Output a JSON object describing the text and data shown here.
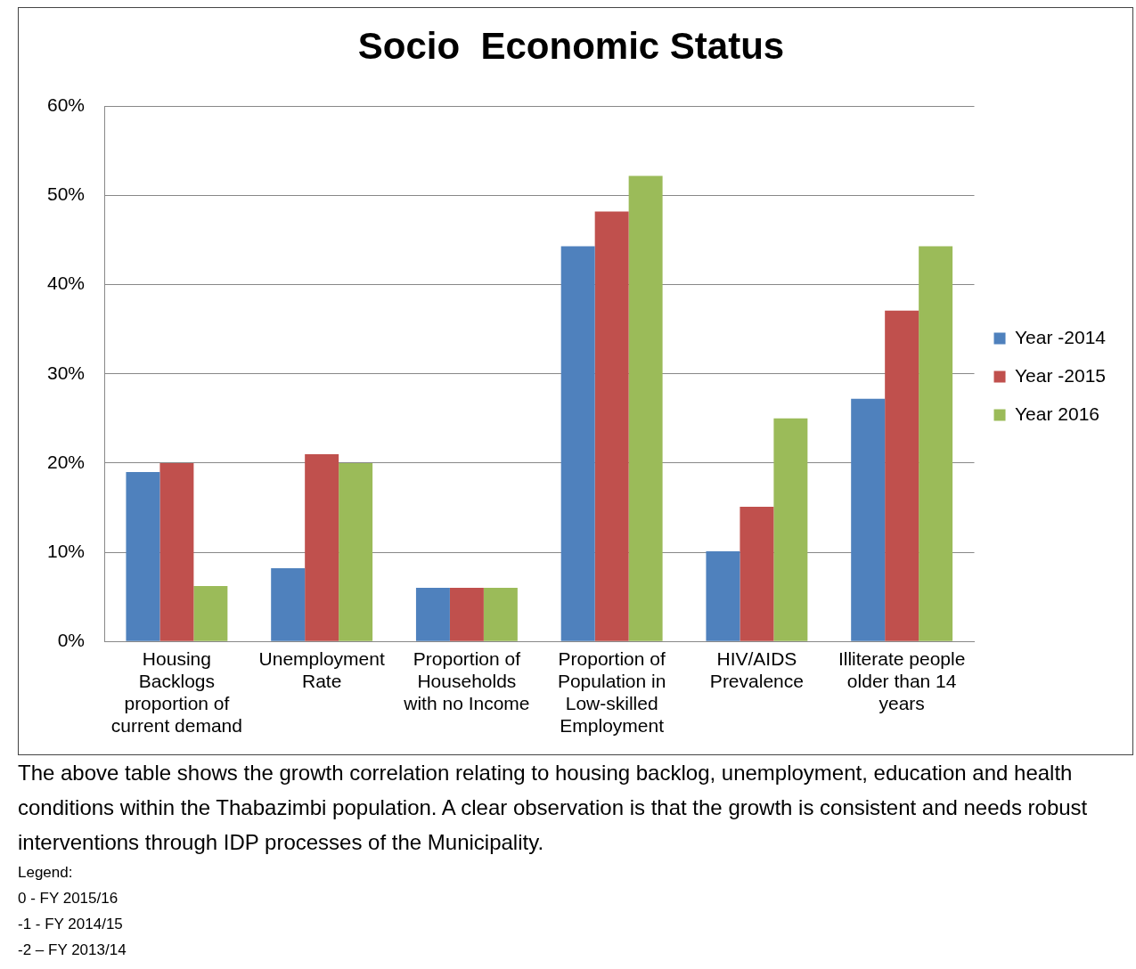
{
  "chart_data": {
    "type": "bar",
    "title": "Socio  Economic Status",
    "categories": [
      "Housing\nBacklogs\nproportion of\ncurrent demand",
      "Unemployment\nRate",
      "Proportion of\nHouseholds\nwith no Income",
      "Proportion of\nPopulation in\nLow-skilled\nEmployment",
      "HIV/AIDS\nPrevalence",
      "Illiterate people\nolder than 14\nyears"
    ],
    "series": [
      {
        "name": "Year -2014",
        "color": "#4f81bd",
        "values": [
          19,
          8.2,
          6,
          44.3,
          10.1,
          27.2
        ]
      },
      {
        "name": "Year -2015",
        "color": "#c0504d",
        "values": [
          20,
          21,
          6,
          48.2,
          15.1,
          37.1
        ]
      },
      {
        "name": "Year 2016",
        "color": "#9bbb59",
        "values": [
          6.2,
          20,
          6,
          52.2,
          25,
          44.3
        ]
      }
    ],
    "ylim": [
      0,
      60
    ],
    "yticks": [
      {
        "value": 0,
        "label": "0%"
      },
      {
        "value": 10,
        "label": "10%"
      },
      {
        "value": 20,
        "label": "20%"
      },
      {
        "value": 30,
        "label": "30%"
      },
      {
        "value": 40,
        "label": "40%"
      },
      {
        "value": 50,
        "label": "50%"
      },
      {
        "value": 60,
        "label": "60%"
      }
    ],
    "grid": "y",
    "legend": "right",
    "annotations": [
      "The above table shows the growth correlation  relating to housing backlog, unemployment, education and health conditions within the Thabazimbi population. A clear observation is that the growth is consistent and needs robust interventions through IDP processes of the Municipality.",
      "Legend:",
      "0 - FY 2015/16",
      "-1 - FY 2014/15",
      "-2 – FY 2013/14"
    ]
  }
}
